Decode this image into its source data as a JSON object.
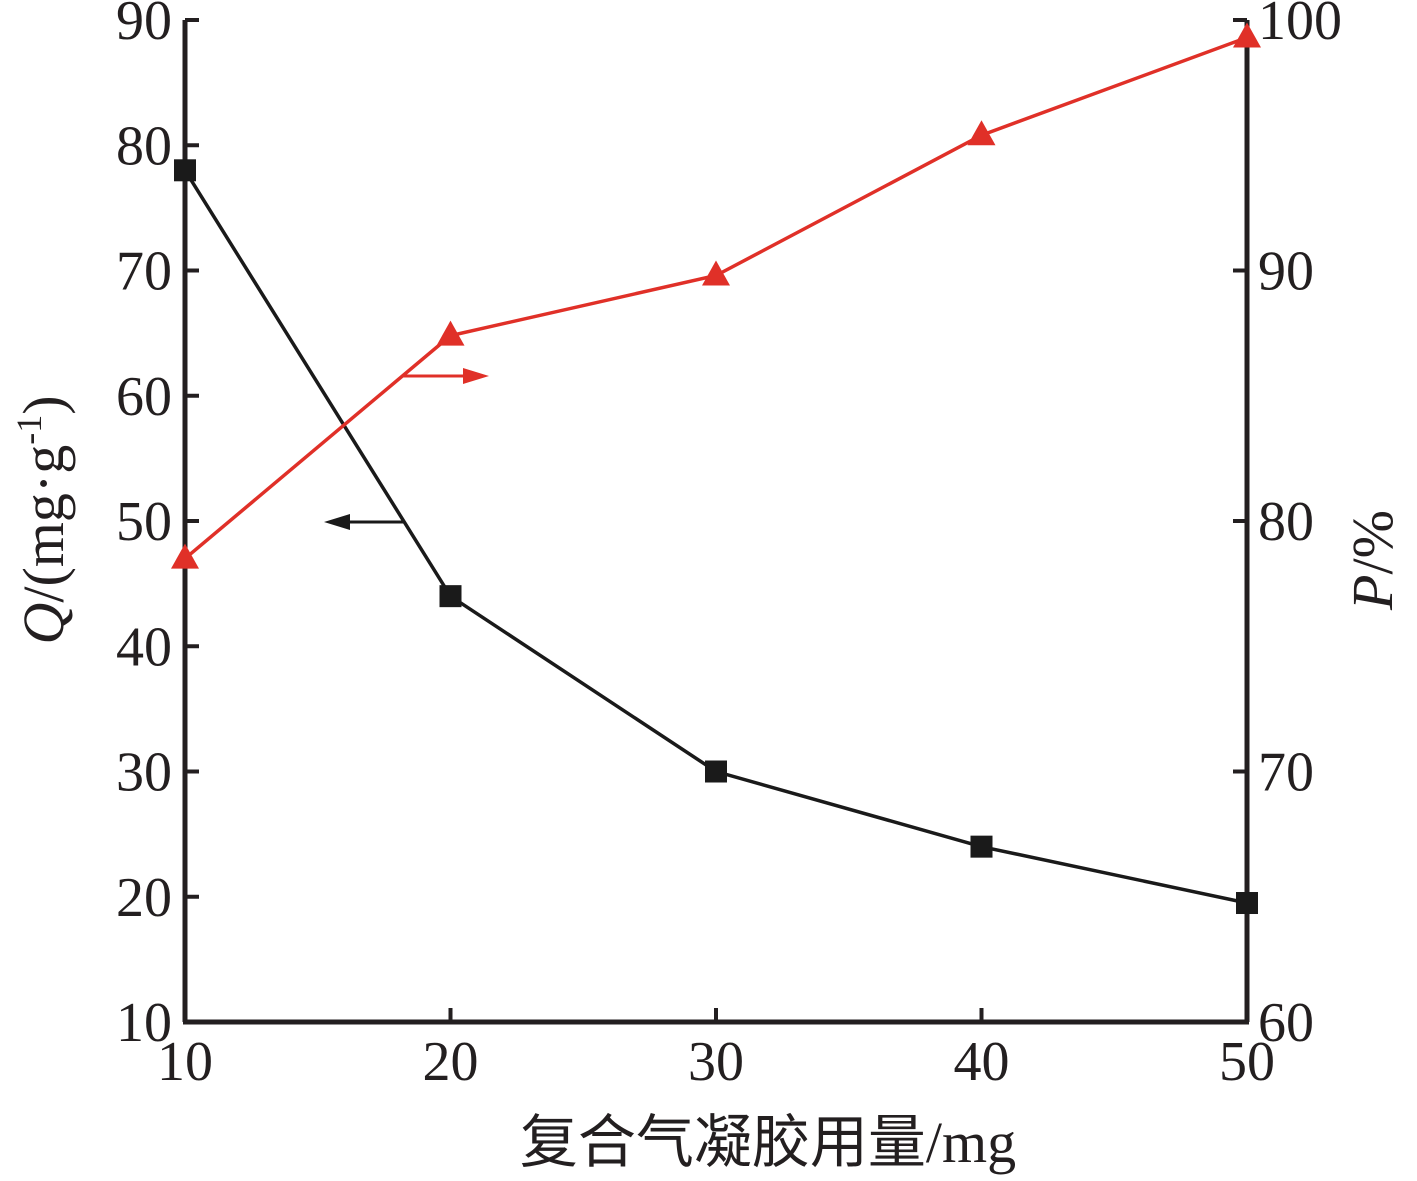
{
  "chart_data": {
    "type": "line",
    "x": [
      10,
      20,
      30,
      40,
      50
    ],
    "xlabel": "复合气凝胶用量/mg",
    "xlim": [
      10,
      50
    ],
    "xticks": [
      "10",
      "20",
      "30",
      "40",
      "50"
    ],
    "ylabel_left": {
      "var": "Q",
      "rest": "/(mg·g",
      "sup": "-1",
      "close": ")"
    },
    "ylim_left": [
      10,
      90
    ],
    "yticks_left": [
      "10",
      "20",
      "30",
      "40",
      "50",
      "60",
      "70",
      "80",
      "90"
    ],
    "ylabel_right": {
      "var": "P",
      "rest": "/%"
    },
    "ylim_right": [
      60,
      100
    ],
    "yticks_right": [
      "60",
      "70",
      "80",
      "90",
      "100"
    ],
    "grid": false,
    "series": [
      {
        "axis": "left",
        "values": [
          78.0,
          44.0,
          30.0,
          24.0,
          19.5
        ],
        "color": "#1a1a1a",
        "marker": "square"
      },
      {
        "axis": "right",
        "values": [
          78.5,
          87.4,
          89.8,
          95.4,
          99.3
        ],
        "color": "#e03028",
        "marker": "triangle"
      }
    ],
    "annotations": [
      {
        "type": "arrow",
        "direction": "left",
        "points_to": "left-axis",
        "color": "#1a1a1a"
      },
      {
        "type": "arrow",
        "direction": "right",
        "points_to": "right-axis",
        "color": "#e03028"
      }
    ]
  }
}
